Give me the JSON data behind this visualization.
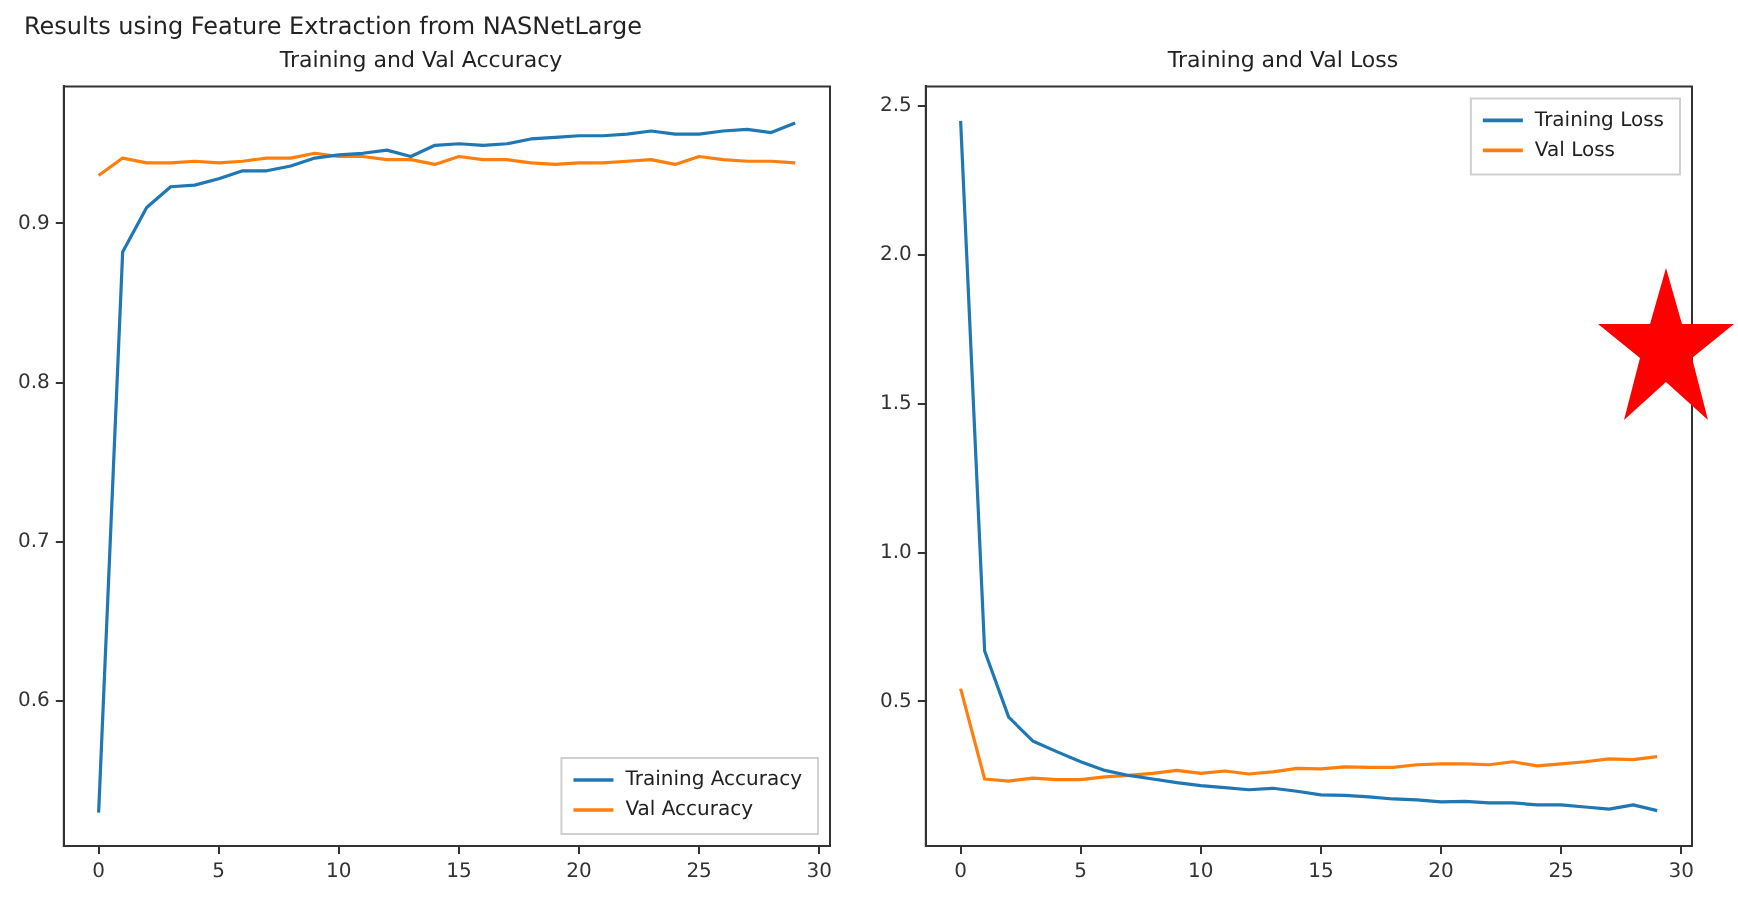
{
  "chart_data": [
    {
      "type": "line",
      "title": "Training and Val Accuracy",
      "annotations": [
        "Results using Feature Extraction from NASNetLarge"
      ],
      "x": [
        0,
        1,
        2,
        3,
        4,
        5,
        6,
        7,
        8,
        9,
        10,
        11,
        12,
        13,
        14,
        15,
        16,
        17,
        18,
        19,
        20,
        21,
        22,
        23,
        24,
        25,
        26,
        27,
        28,
        29
      ],
      "series": [
        {
          "name": "Training Accuracy",
          "color": "#1f77b4",
          "values": [
            0.53,
            0.882,
            0.91,
            0.923,
            0.924,
            0.928,
            0.933,
            0.933,
            0.936,
            0.941,
            0.943,
            0.944,
            0.946,
            0.942,
            0.949,
            0.95,
            0.949,
            0.95,
            0.953,
            0.954,
            0.955,
            0.955,
            0.956,
            0.958,
            0.956,
            0.956,
            0.958,
            0.959,
            0.957,
            0.963
          ]
        },
        {
          "name": "Val Accuracy",
          "color": "#ff7f0e",
          "values": [
            0.93,
            0.941,
            0.938,
            0.938,
            0.939,
            0.938,
            0.939,
            0.941,
            0.941,
            0.944,
            0.942,
            0.942,
            0.94,
            0.94,
            0.937,
            0.942,
            0.94,
            0.94,
            0.938,
            0.937,
            0.938,
            0.938,
            0.939,
            0.94,
            0.937,
            0.942,
            0.94,
            0.939,
            0.939,
            0.938
          ]
        }
      ],
      "xlim": [
        -1.45,
        30.45
      ],
      "xticks": [
        0,
        5,
        10,
        15,
        20,
        25,
        30
      ],
      "ylim": [
        0.509,
        0.986
      ],
      "yticks": [
        0.6,
        0.7,
        0.8,
        0.9
      ],
      "grid": false,
      "legend": "bottom right"
    },
    {
      "type": "line",
      "title": "Training and Val Loss",
      "x": [
        0,
        1,
        2,
        3,
        4,
        5,
        6,
        7,
        8,
        9,
        10,
        11,
        12,
        13,
        14,
        15,
        16,
        17,
        18,
        19,
        20,
        21,
        22,
        23,
        24,
        25,
        26,
        27,
        28,
        29
      ],
      "series": [
        {
          "name": "Training Loss",
          "color": "#1f77b4",
          "values": [
            2.45,
            0.669,
            0.447,
            0.367,
            0.331,
            0.297,
            0.268,
            0.251,
            0.239,
            0.227,
            0.217,
            0.21,
            0.203,
            0.208,
            0.198,
            0.186,
            0.184,
            0.179,
            0.172,
            0.169,
            0.162,
            0.164,
            0.159,
            0.159,
            0.152,
            0.152,
            0.145,
            0.138,
            0.152,
            0.133
          ]
        },
        {
          "name": "Val Loss",
          "color": "#ff7f0e",
          "values": [
            0.543,
            0.239,
            0.232,
            0.242,
            0.237,
            0.237,
            0.246,
            0.251,
            0.258,
            0.268,
            0.258,
            0.266,
            0.256,
            0.263,
            0.275,
            0.273,
            0.28,
            0.278,
            0.278,
            0.287,
            0.29,
            0.29,
            0.287,
            0.297,
            0.283,
            0.29,
            0.297,
            0.307,
            0.304,
            0.314
          ]
        }
      ],
      "xlim": [
        -1.45,
        30.45
      ],
      "xticks": [
        0,
        5,
        10,
        15,
        20,
        25,
        30
      ],
      "ylim": [
        0.014,
        2.566
      ],
      "yticks": [
        {
          "value": 0.5,
          "label": "0.5"
        },
        {
          "value": 1.0,
          "label": "1.0"
        },
        {
          "value": 1.5,
          "label": "1.5"
        },
        {
          "value": 2.0,
          "label": "2.0"
        },
        {
          "value": 2.5,
          "label": "2.5"
        }
      ],
      "grid": false,
      "legend": "top right"
    }
  ]
}
